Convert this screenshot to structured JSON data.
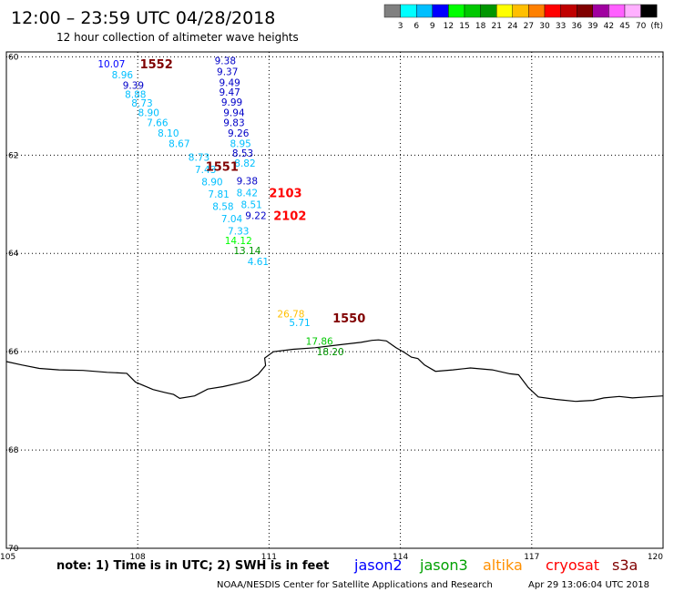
{
  "header": {
    "title": "12:00 – 23:59 UTC 04/28/2018",
    "subtitle": "12 hour collection of altimeter wave heights"
  },
  "legend": {
    "colors": [
      "#808080",
      "#00ffff",
      "#00bfff",
      "#0000ff",
      "#00ff00",
      "#00c800",
      "#009600",
      "#ffff00",
      "#ffbf00",
      "#ff8000",
      "#ff0000",
      "#c00000",
      "#800000",
      "#a000a0",
      "#ff60ff",
      "#ffb0ff",
      "#000000"
    ],
    "labels": [
      "3",
      "6",
      "9",
      "12",
      "15",
      "18",
      "21",
      "24",
      "27",
      "30",
      "33",
      "36",
      "39",
      "42",
      "45",
      "70",
      "(ft)"
    ]
  },
  "map": {
    "lon_range": [
      105,
      120
    ],
    "lat_range": [
      -70,
      -59.9
    ],
    "lon_ticks": [
      {
        "value": 105,
        "label": "105"
      },
      {
        "value": 108,
        "label": "108"
      },
      {
        "value": 111,
        "label": "111"
      },
      {
        "value": 114,
        "label": "114"
      },
      {
        "value": 117,
        "label": "117"
      },
      {
        "value": 120,
        "label": "120"
      }
    ],
    "lat_ticks": [
      {
        "value": -60,
        "label": "60"
      },
      {
        "value": -62,
        "label": "62"
      },
      {
        "value": -64,
        "label": "64"
      },
      {
        "value": -66,
        "label": "66"
      },
      {
        "value": -68,
        "label": "68"
      },
      {
        "value": -70,
        "label": "70"
      }
    ],
    "coastline": [
      [
        105.0,
        -66.2
      ],
      [
        105.35,
        -66.27
      ],
      [
        105.75,
        -66.34
      ],
      [
        106.2,
        -66.37
      ],
      [
        106.75,
        -66.38
      ],
      [
        107.3,
        -66.42
      ],
      [
        107.75,
        -66.44
      ],
      [
        107.95,
        -66.62
      ],
      [
        108.35,
        -66.77
      ],
      [
        108.62,
        -66.83
      ],
      [
        108.82,
        -66.87
      ],
      [
        108.96,
        -66.95
      ],
      [
        109.3,
        -66.9
      ],
      [
        109.6,
        -66.76
      ],
      [
        109.95,
        -66.71
      ],
      [
        110.3,
        -66.64
      ],
      [
        110.55,
        -66.58
      ],
      [
        110.75,
        -66.46
      ],
      [
        110.92,
        -66.28
      ],
      [
        110.9,
        -66.13
      ],
      [
        111.1,
        -66.0
      ],
      [
        111.55,
        -65.95
      ],
      [
        112.05,
        -65.92
      ],
      [
        112.6,
        -65.86
      ],
      [
        113.1,
        -65.81
      ],
      [
        113.35,
        -65.77
      ],
      [
        113.5,
        -65.76
      ],
      [
        113.68,
        -65.78
      ],
      [
        113.9,
        -65.92
      ],
      [
        114.1,
        -66.02
      ],
      [
        114.25,
        -66.11
      ],
      [
        114.4,
        -66.14
      ],
      [
        114.55,
        -66.27
      ],
      [
        114.8,
        -66.4
      ],
      [
        115.2,
        -66.37
      ],
      [
        115.6,
        -66.33
      ],
      [
        116.1,
        -66.37
      ],
      [
        116.5,
        -66.45
      ],
      [
        116.7,
        -66.47
      ],
      [
        116.92,
        -66.73
      ],
      [
        117.15,
        -66.92
      ],
      [
        117.55,
        -66.97
      ],
      [
        118.0,
        -67.01
      ],
      [
        118.4,
        -66.99
      ],
      [
        118.65,
        -66.94
      ],
      [
        119.0,
        -66.91
      ],
      [
        119.3,
        -66.94
      ],
      [
        119.62,
        -66.92
      ],
      [
        120.0,
        -66.9
      ]
    ]
  },
  "tracks": [
    {
      "id": "1552",
      "id_lon": 108.05,
      "id_lat": -60.14,
      "id_color": "#800000"
    },
    {
      "id": "1551",
      "id_lon": 109.55,
      "id_lat": -62.23,
      "id_color": "#800000"
    },
    {
      "id": "2103",
      "id_lon": 111.0,
      "id_lat": -62.76,
      "id_color": "#ff0000"
    },
    {
      "id": "2102",
      "id_lon": 111.1,
      "id_lat": -63.23,
      "id_color": "#ff0000"
    },
    {
      "id": "1550",
      "id_lon": 112.45,
      "id_lat": -65.31,
      "id_color": "#800000"
    }
  ],
  "observations": [
    {
      "value": "10.07",
      "lon": 107.4,
      "lat": -60.14,
      "color": "#0000ff"
    },
    {
      "value": "8.96",
      "lon": 107.65,
      "lat": -60.36,
      "color": "#00bfff"
    },
    {
      "value": "9.39",
      "lon": 107.9,
      "lat": -60.58,
      "color": "#0000c8"
    },
    {
      "value": "8.88",
      "lon": 107.95,
      "lat": -60.76,
      "color": "#00bfff"
    },
    {
      "value": "8.73",
      "lon": 108.1,
      "lat": -60.94,
      "color": "#00bfff"
    },
    {
      "value": "8.90",
      "lon": 108.25,
      "lat": -61.13,
      "color": "#00bfff"
    },
    {
      "value": "7.66",
      "lon": 108.45,
      "lat": -61.34,
      "color": "#00bfff"
    },
    {
      "value": "8.10",
      "lon": 108.7,
      "lat": -61.55,
      "color": "#00bfff"
    },
    {
      "value": "8.67",
      "lon": 108.95,
      "lat": -61.76,
      "color": "#00bfff"
    },
    {
      "value": "8.73",
      "lon": 109.4,
      "lat": -62.04,
      "color": "#00bfff"
    },
    {
      "value": "7.43",
      "lon": 109.55,
      "lat": -62.29,
      "color": "#00bfff"
    },
    {
      "value": "8.90",
      "lon": 109.7,
      "lat": -62.54,
      "color": "#00bfff"
    },
    {
      "value": "7.81",
      "lon": 109.85,
      "lat": -62.79,
      "color": "#00bfff"
    },
    {
      "value": "8.58",
      "lon": 109.95,
      "lat": -63.04,
      "color": "#00bfff"
    },
    {
      "value": "7.04",
      "lon": 110.15,
      "lat": -63.29,
      "color": "#00bfff"
    },
    {
      "value": "7.33",
      "lon": 110.3,
      "lat": -63.54,
      "color": "#00bfff"
    },
    {
      "value": "14.12",
      "lon": 110.3,
      "lat": -63.74,
      "color": "#00ff00"
    },
    {
      "value": "13.14",
      "lon": 110.5,
      "lat": -63.94,
      "color": "#009600"
    },
    {
      "value": "4.61",
      "lon": 110.75,
      "lat": -64.16,
      "color": "#00bfff"
    },
    {
      "value": "9.38",
      "lon": 110.0,
      "lat": -60.08,
      "color": "#0000c8"
    },
    {
      "value": "9.37",
      "lon": 110.05,
      "lat": -60.3,
      "color": "#0000c8"
    },
    {
      "value": "9.49",
      "lon": 110.1,
      "lat": -60.52,
      "color": "#0000c8"
    },
    {
      "value": "9.47",
      "lon": 110.1,
      "lat": -60.72,
      "color": "#0000c8"
    },
    {
      "value": "9.99",
      "lon": 110.15,
      "lat": -60.92,
      "color": "#0000c8"
    },
    {
      "value": "9.94",
      "lon": 110.2,
      "lat": -61.13,
      "color": "#0000c8"
    },
    {
      "value": "9.83",
      "lon": 110.2,
      "lat": -61.34,
      "color": "#0000c8"
    },
    {
      "value": "9.26",
      "lon": 110.3,
      "lat": -61.55,
      "color": "#0000c8"
    },
    {
      "value": "8.95",
      "lon": 110.35,
      "lat": -61.76,
      "color": "#00bfff"
    },
    {
      "value": "8.53",
      "lon": 110.4,
      "lat": -61.96,
      "color": "#0000c8"
    },
    {
      "value": "8.82",
      "lon": 110.45,
      "lat": -62.16,
      "color": "#00bfff"
    },
    {
      "value": "9.38",
      "lon": 110.5,
      "lat": -62.52,
      "color": "#0000c8"
    },
    {
      "value": "8.42",
      "lon": 110.5,
      "lat": -62.76,
      "color": "#00bfff"
    },
    {
      "value": "8.51",
      "lon": 110.6,
      "lat": -63.0,
      "color": "#00bfff"
    },
    {
      "value": "9.22",
      "lon": 110.7,
      "lat": -63.23,
      "color": "#0000c8"
    },
    {
      "value": "26.78",
      "lon": 111.5,
      "lat": -65.23,
      "color": "#ffbf00"
    },
    {
      "value": "5.71",
      "lon": 111.7,
      "lat": -65.4,
      "color": "#00bfff"
    },
    {
      "value": "17.86",
      "lon": 112.15,
      "lat": -65.78,
      "color": "#00c800"
    },
    {
      "value": "18.20",
      "lon": 112.4,
      "lat": -66.0,
      "color": "#009600"
    }
  ],
  "footer": {
    "note": "note: 1) Time is in UTC; 2) SWH is in feet",
    "missions": [
      {
        "name": "jason2",
        "color": "#0000ff"
      },
      {
        "name": "jason3",
        "color": "#00a000"
      },
      {
        "name": "altika",
        "color": "#ff9000"
      },
      {
        "name": "cryosat",
        "color": "#ff0000"
      },
      {
        "name": "s3a",
        "color": "#800000"
      }
    ],
    "credit": "NOAA/NESDIS Center for Satellite Applications and Research",
    "timestamp": "Apr 29 13:06:04 UTC 2018"
  }
}
